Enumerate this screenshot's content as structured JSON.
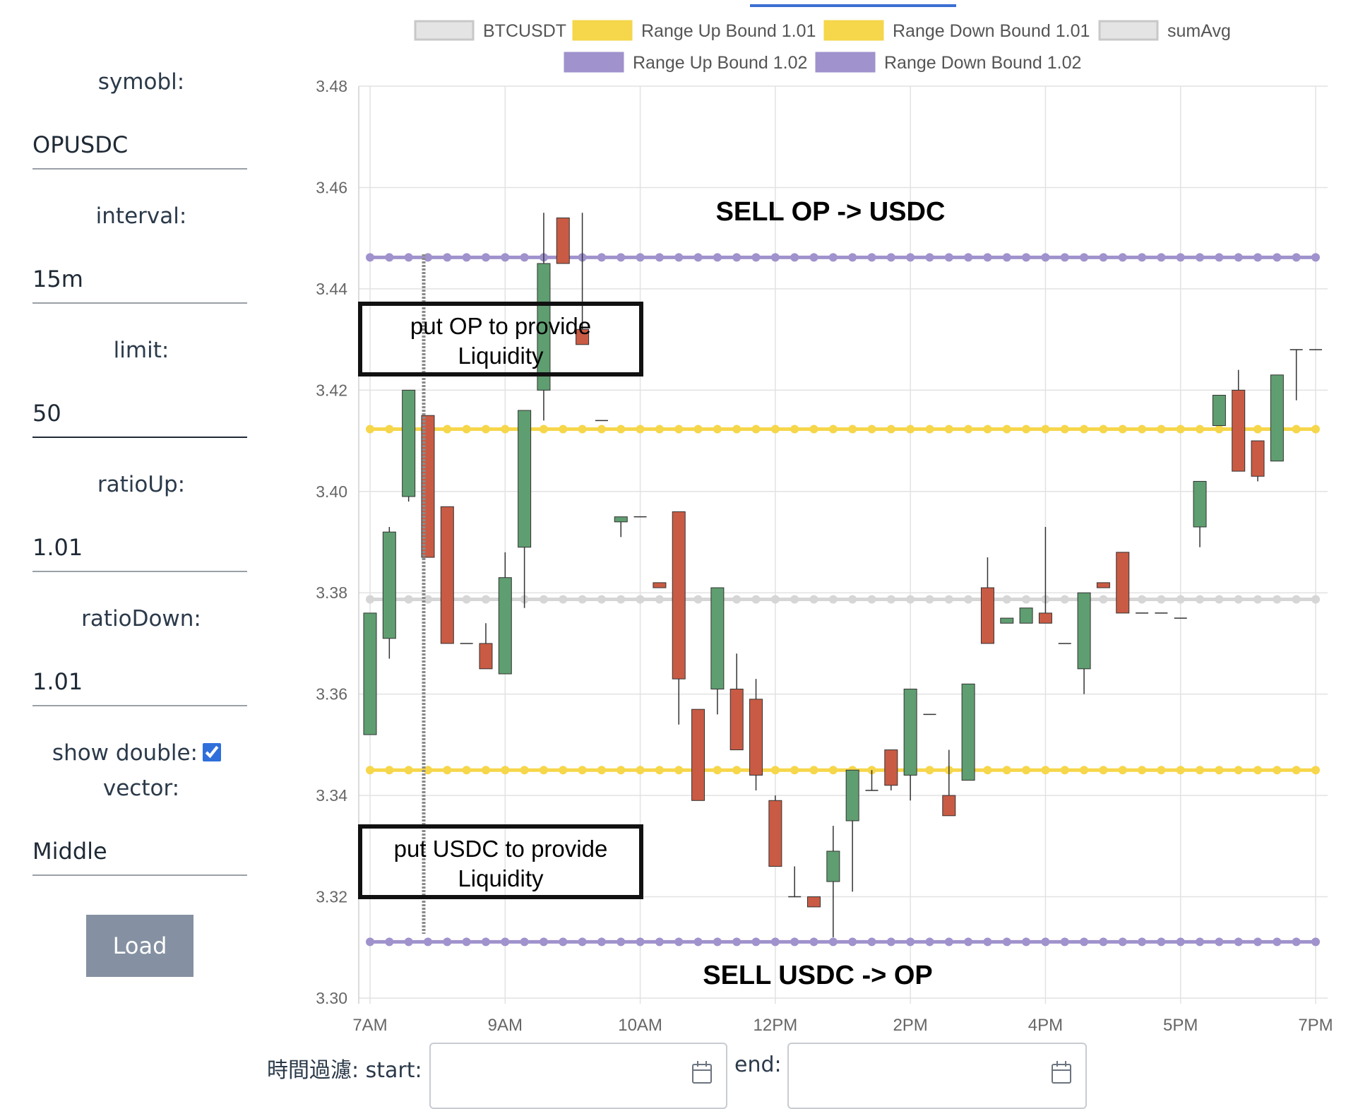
{
  "form": {
    "symbol_label": "symobl:",
    "symbol_value": "OPUSDC",
    "interval_label": "interval:",
    "interval_value": "15m",
    "limit_label": "limit:",
    "limit_value": "50",
    "ratio_up_label": "ratioUp:",
    "ratio_up_value": "1.01",
    "ratio_down_label": "ratioDown:",
    "ratio_down_value": "1.01",
    "show_double_label": "show double:",
    "show_double_checked": true,
    "vector_label": "vector:",
    "vector_value": "Middle",
    "load_label": "Load"
  },
  "filter": {
    "label": "時間過濾: start:",
    "end_label": "end:",
    "icon": "calendar-icon"
  },
  "colors": {
    "up": "#5f9e70",
    "down": "#c95b44",
    "bound_101": "#f6d64a",
    "bound_102": "#a092cc",
    "sumavg": "#d6d6d6",
    "grid": "#e2e2e2",
    "tab_accent": "#3b6fd3"
  },
  "chart_data": {
    "type": "candlestick",
    "title": "",
    "xlabel": "",
    "ylabel": "",
    "ylim": [
      3.3,
      3.48
    ],
    "y_ticks": [
      "3.48",
      "3.46",
      "3.44",
      "3.42",
      "3.40",
      "3.38",
      "3.36",
      "3.34",
      "3.32",
      "3.30"
    ],
    "y_tick_values": [
      3.48,
      3.46,
      3.44,
      3.42,
      3.4,
      3.38,
      3.36,
      3.34,
      3.32,
      3.3
    ],
    "x_ticks": [
      {
        "label": "7AM",
        "index": 0
      },
      {
        "label": "9AM",
        "index": 7
      },
      {
        "label": "10AM",
        "index": 14
      },
      {
        "label": "12PM",
        "index": 21
      },
      {
        "label": "2PM",
        "index": 28
      },
      {
        "label": "4PM",
        "index": 35
      },
      {
        "label": "5PM",
        "index": 42
      },
      {
        "label": "7PM",
        "index": 49
      }
    ],
    "legend": [
      {
        "name": "BTCUSDT",
        "color": "#e4e4e4",
        "border": "#c8c8c8"
      },
      {
        "name": "Range Up Bound 1.01",
        "color": "#f6d64a",
        "border": "#f6d64a"
      },
      {
        "name": "Range Down Bound 1.01",
        "color": "#f6d64a",
        "border": "#f6d64a"
      },
      {
        "name": "sumAvg",
        "color": "#e4e4e4",
        "border": "#c8c8c8"
      },
      {
        "name": "Range Up Bound 1.02",
        "color": "#a092cc",
        "border": "#a092cc"
      },
      {
        "name": "Range Down Bound 1.02",
        "color": "#a092cc",
        "border": "#a092cc"
      }
    ],
    "lines": [
      {
        "name": "Range Up Bound 1.02",
        "value": 3.4462,
        "color": "#a092cc"
      },
      {
        "name": "Range Up Bound 1.01",
        "value": 3.4123,
        "color": "#f6d64a"
      },
      {
        "name": "sumAvg",
        "value": 3.3787,
        "color": "#d6d6d6"
      },
      {
        "name": "Range Down Bound 1.01",
        "value": 3.345,
        "color": "#f6d64a"
      },
      {
        "name": "Range Down Bound 1.02",
        "value": 3.3111,
        "color": "#a092cc"
      }
    ],
    "candles": [
      {
        "o": 3.352,
        "h": 3.376,
        "l": 3.352,
        "c": 3.376
      },
      {
        "o": 3.371,
        "h": 3.393,
        "l": 3.367,
        "c": 3.392
      },
      {
        "o": 3.399,
        "h": 3.42,
        "l": 3.398,
        "c": 3.42
      },
      {
        "o": 3.415,
        "h": 3.415,
        "l": 3.387,
        "c": 3.387
      },
      {
        "o": 3.397,
        "h": 3.397,
        "l": 3.37,
        "c": 3.37
      },
      {
        "o": 3.37,
        "h": 3.37,
        "l": 3.37,
        "c": 3.37
      },
      {
        "o": 3.37,
        "h": 3.374,
        "l": 3.365,
        "c": 3.365
      },
      {
        "o": 3.364,
        "h": 3.388,
        "l": 3.364,
        "c": 3.383
      },
      {
        "o": 3.389,
        "h": 3.416,
        "l": 3.377,
        "c": 3.416
      },
      {
        "o": 3.42,
        "h": 3.455,
        "l": 3.414,
        "c": 3.445
      },
      {
        "o": 3.454,
        "h": 3.454,
        "l": 3.445,
        "c": 3.445
      },
      {
        "o": 3.432,
        "h": 3.455,
        "l": 3.429,
        "c": 3.429
      },
      {
        "o": 3.414,
        "h": 3.414,
        "l": 3.414,
        "c": 3.414
      },
      {
        "o": 3.394,
        "h": 3.395,
        "l": 3.391,
        "c": 3.395
      },
      {
        "o": 3.395,
        "h": 3.395,
        "l": 3.395,
        "c": 3.395
      },
      {
        "o": 3.382,
        "h": 3.382,
        "l": 3.381,
        "c": 3.381
      },
      {
        "o": 3.396,
        "h": 3.396,
        "l": 3.354,
        "c": 3.363
      },
      {
        "o": 3.357,
        "h": 3.357,
        "l": 3.339,
        "c": 3.339
      },
      {
        "o": 3.361,
        "h": 3.381,
        "l": 3.356,
        "c": 3.381
      },
      {
        "o": 3.361,
        "h": 3.368,
        "l": 3.349,
        "c": 3.349
      },
      {
        "o": 3.359,
        "h": 3.363,
        "l": 3.341,
        "c": 3.344
      },
      {
        "o": 3.339,
        "h": 3.34,
        "l": 3.326,
        "c": 3.326
      },
      {
        "o": 3.32,
        "h": 3.326,
        "l": 3.32,
        "c": 3.32
      },
      {
        "o": 3.32,
        "h": 3.32,
        "l": 3.318,
        "c": 3.318
      },
      {
        "o": 3.323,
        "h": 3.334,
        "l": 3.312,
        "c": 3.329
      },
      {
        "o": 3.335,
        "h": 3.345,
        "l": 3.321,
        "c": 3.345
      },
      {
        "o": 3.341,
        "h": 3.345,
        "l": 3.341,
        "c": 3.341
      },
      {
        "o": 3.349,
        "h": 3.349,
        "l": 3.341,
        "c": 3.342
      },
      {
        "o": 3.344,
        "h": 3.361,
        "l": 3.339,
        "c": 3.361
      },
      {
        "o": 3.356,
        "h": 3.356,
        "l": 3.356,
        "c": 3.356
      },
      {
        "o": 3.34,
        "h": 3.349,
        "l": 3.336,
        "c": 3.336
      },
      {
        "o": 3.343,
        "h": 3.362,
        "l": 3.343,
        "c": 3.362
      },
      {
        "o": 3.381,
        "h": 3.387,
        "l": 3.37,
        "c": 3.37
      },
      {
        "o": 3.374,
        "h": 3.375,
        "l": 3.374,
        "c": 3.375
      },
      {
        "o": 3.374,
        "h": 3.377,
        "l": 3.374,
        "c": 3.377
      },
      {
        "o": 3.376,
        "h": 3.393,
        "l": 3.374,
        "c": 3.374
      },
      {
        "o": 3.37,
        "h": 3.37,
        "l": 3.37,
        "c": 3.37
      },
      {
        "o": 3.365,
        "h": 3.38,
        "l": 3.36,
        "c": 3.38
      },
      {
        "o": 3.382,
        "h": 3.382,
        "l": 3.381,
        "c": 3.381
      },
      {
        "o": 3.388,
        "h": 3.388,
        "l": 3.376,
        "c": 3.376
      },
      {
        "o": 3.376,
        "h": 3.376,
        "l": 3.376,
        "c": 3.376
      },
      {
        "o": 3.376,
        "h": 3.376,
        "l": 3.376,
        "c": 3.376
      },
      {
        "o": 3.375,
        "h": 3.375,
        "l": 3.375,
        "c": 3.375
      },
      {
        "o": 3.393,
        "h": 3.402,
        "l": 3.389,
        "c": 3.402
      },
      {
        "o": 3.413,
        "h": 3.419,
        "l": 3.413,
        "c": 3.419
      },
      {
        "o": 3.42,
        "h": 3.424,
        "l": 3.404,
        "c": 3.404
      },
      {
        "o": 3.41,
        "h": 3.41,
        "l": 3.402,
        "c": 3.403
      },
      {
        "o": 3.406,
        "h": 3.423,
        "l": 3.406,
        "c": 3.423
      },
      {
        "o": 3.428,
        "h": 3.428,
        "l": 3.418,
        "c": 3.428
      },
      {
        "o": 3.428,
        "h": 3.428,
        "l": 3.428,
        "c": 3.428
      }
    ],
    "annotations": [
      {
        "text": "SELL OP -> USDC",
        "kind": "bold"
      },
      {
        "text": "put OP to provide",
        "line2": "Liquidity",
        "kind": "box"
      },
      {
        "text": "put USDC to provide",
        "line2": "Liquidity",
        "kind": "box"
      },
      {
        "text": "SELL USDC -> OP",
        "kind": "bold"
      }
    ]
  }
}
